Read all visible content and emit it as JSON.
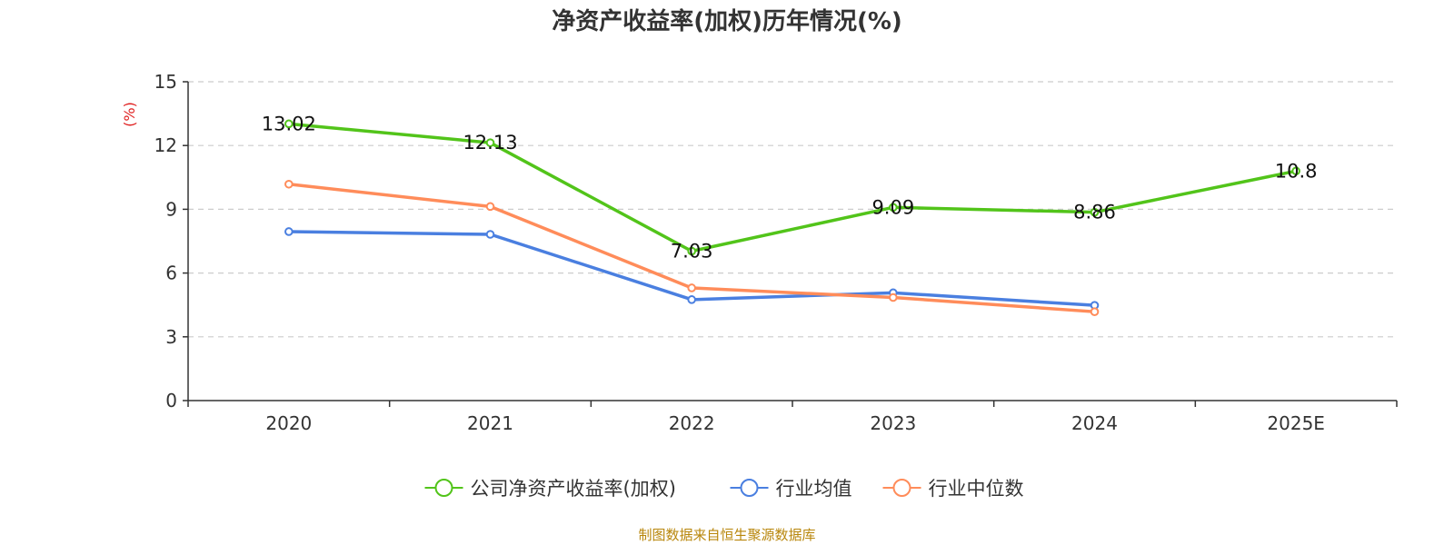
{
  "chart_data": {
    "type": "line",
    "title": "净资产收益率(加权)历年情况(%)",
    "ylabel": "(%)",
    "xlabel": "",
    "categories": [
      "2020",
      "2021",
      "2022",
      "2023",
      "2024",
      "2025E"
    ],
    "ylim": [
      0,
      15
    ],
    "yticks": [
      0,
      3,
      6,
      9,
      12,
      15
    ],
    "grid": true,
    "legend_position": "bottom",
    "series": [
      {
        "name": "公司净资产收益率(加权)",
        "color": "#52c41a",
        "values": [
          13.02,
          12.13,
          7.03,
          9.09,
          8.86,
          10.8
        ],
        "labels": [
          "13.02",
          "12.13",
          "7.03",
          "9.09",
          "8.86",
          "10.8"
        ],
        "show_labels": true
      },
      {
        "name": "行业均值",
        "color": "#4a7fe0",
        "values": [
          7.95,
          7.82,
          4.75,
          5.07,
          4.48,
          null
        ],
        "show_labels": false
      },
      {
        "name": "行业中位数",
        "color": "#ff8c5a",
        "values": [
          10.18,
          9.13,
          5.3,
          4.85,
          4.18,
          null
        ],
        "show_labels": false
      }
    ],
    "source": "制图数据来自恒生聚源数据库"
  },
  "colors": {
    "ylabel": "#e02020",
    "source": "#b8860b",
    "axis": "#333333",
    "grid": "#cccccc"
  }
}
